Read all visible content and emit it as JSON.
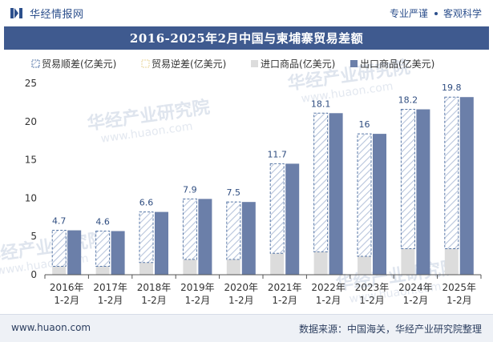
{
  "header": {
    "brand_name": "华经情报网",
    "tagline_left": "专业严谨",
    "tagline_right": "客观科学"
  },
  "chart_title": "2016-2025年2月中国与柬埔寨贸易差额",
  "footer": {
    "url": "www.huaon.com",
    "source": "数据来源：中国海关，华经产业研究院整理"
  },
  "watermark": {
    "text": "华经产业研究院",
    "url": "www.huaon.com"
  },
  "colors": {
    "export": "#6b7fa9",
    "import": "#dcdcdc",
    "surplus_stripe": "#b8c5dc",
    "surplus_border": "#5a79a8",
    "title_bg": "#3f5a8f",
    "label": "#2f4d80"
  },
  "chart_data": {
    "type": "bar",
    "categories": [
      "2016年\n1-2月",
      "2017年\n1-2月",
      "2018年\n1-2月",
      "2019年\n1-2月",
      "2020年\n1-2月",
      "2021年\n1-2月",
      "2022年\n1-2月",
      "2023年\n1-2月",
      "2024年\n1-2月",
      "2025年\n1-2月"
    ],
    "series": [
      {
        "name": "贸易顺差(亿美元)",
        "values": [
          4.7,
          4.6,
          6.6,
          7.9,
          7.5,
          11.7,
          18.1,
          16,
          18.2,
          19.8
        ]
      },
      {
        "name": "贸易逆差(亿美元)",
        "values": [
          0,
          0,
          0,
          0,
          0,
          0,
          0,
          0,
          0,
          0
        ]
      },
      {
        "name": "进口商品(亿美元)",
        "values": [
          1.1,
          1.1,
          1.6,
          2.0,
          2.0,
          2.8,
          3.0,
          2.4,
          3.4,
          3.4
        ]
      },
      {
        "name": "出口商品(亿美元)",
        "values": [
          5.8,
          5.7,
          8.2,
          9.9,
          9.5,
          14.5,
          21.1,
          18.4,
          21.6,
          23.2
        ]
      }
    ],
    "data_labels": [
      "4.7",
      "4.6",
      "6.6",
      "7.9",
      "7.5",
      "11.7",
      "18.1",
      "16",
      "18.2",
      "19.8"
    ],
    "ylim": [
      0,
      25
    ],
    "yticks": [
      0,
      5,
      10,
      15,
      20,
      25
    ],
    "legend_position": "top-left",
    "grid": false
  }
}
